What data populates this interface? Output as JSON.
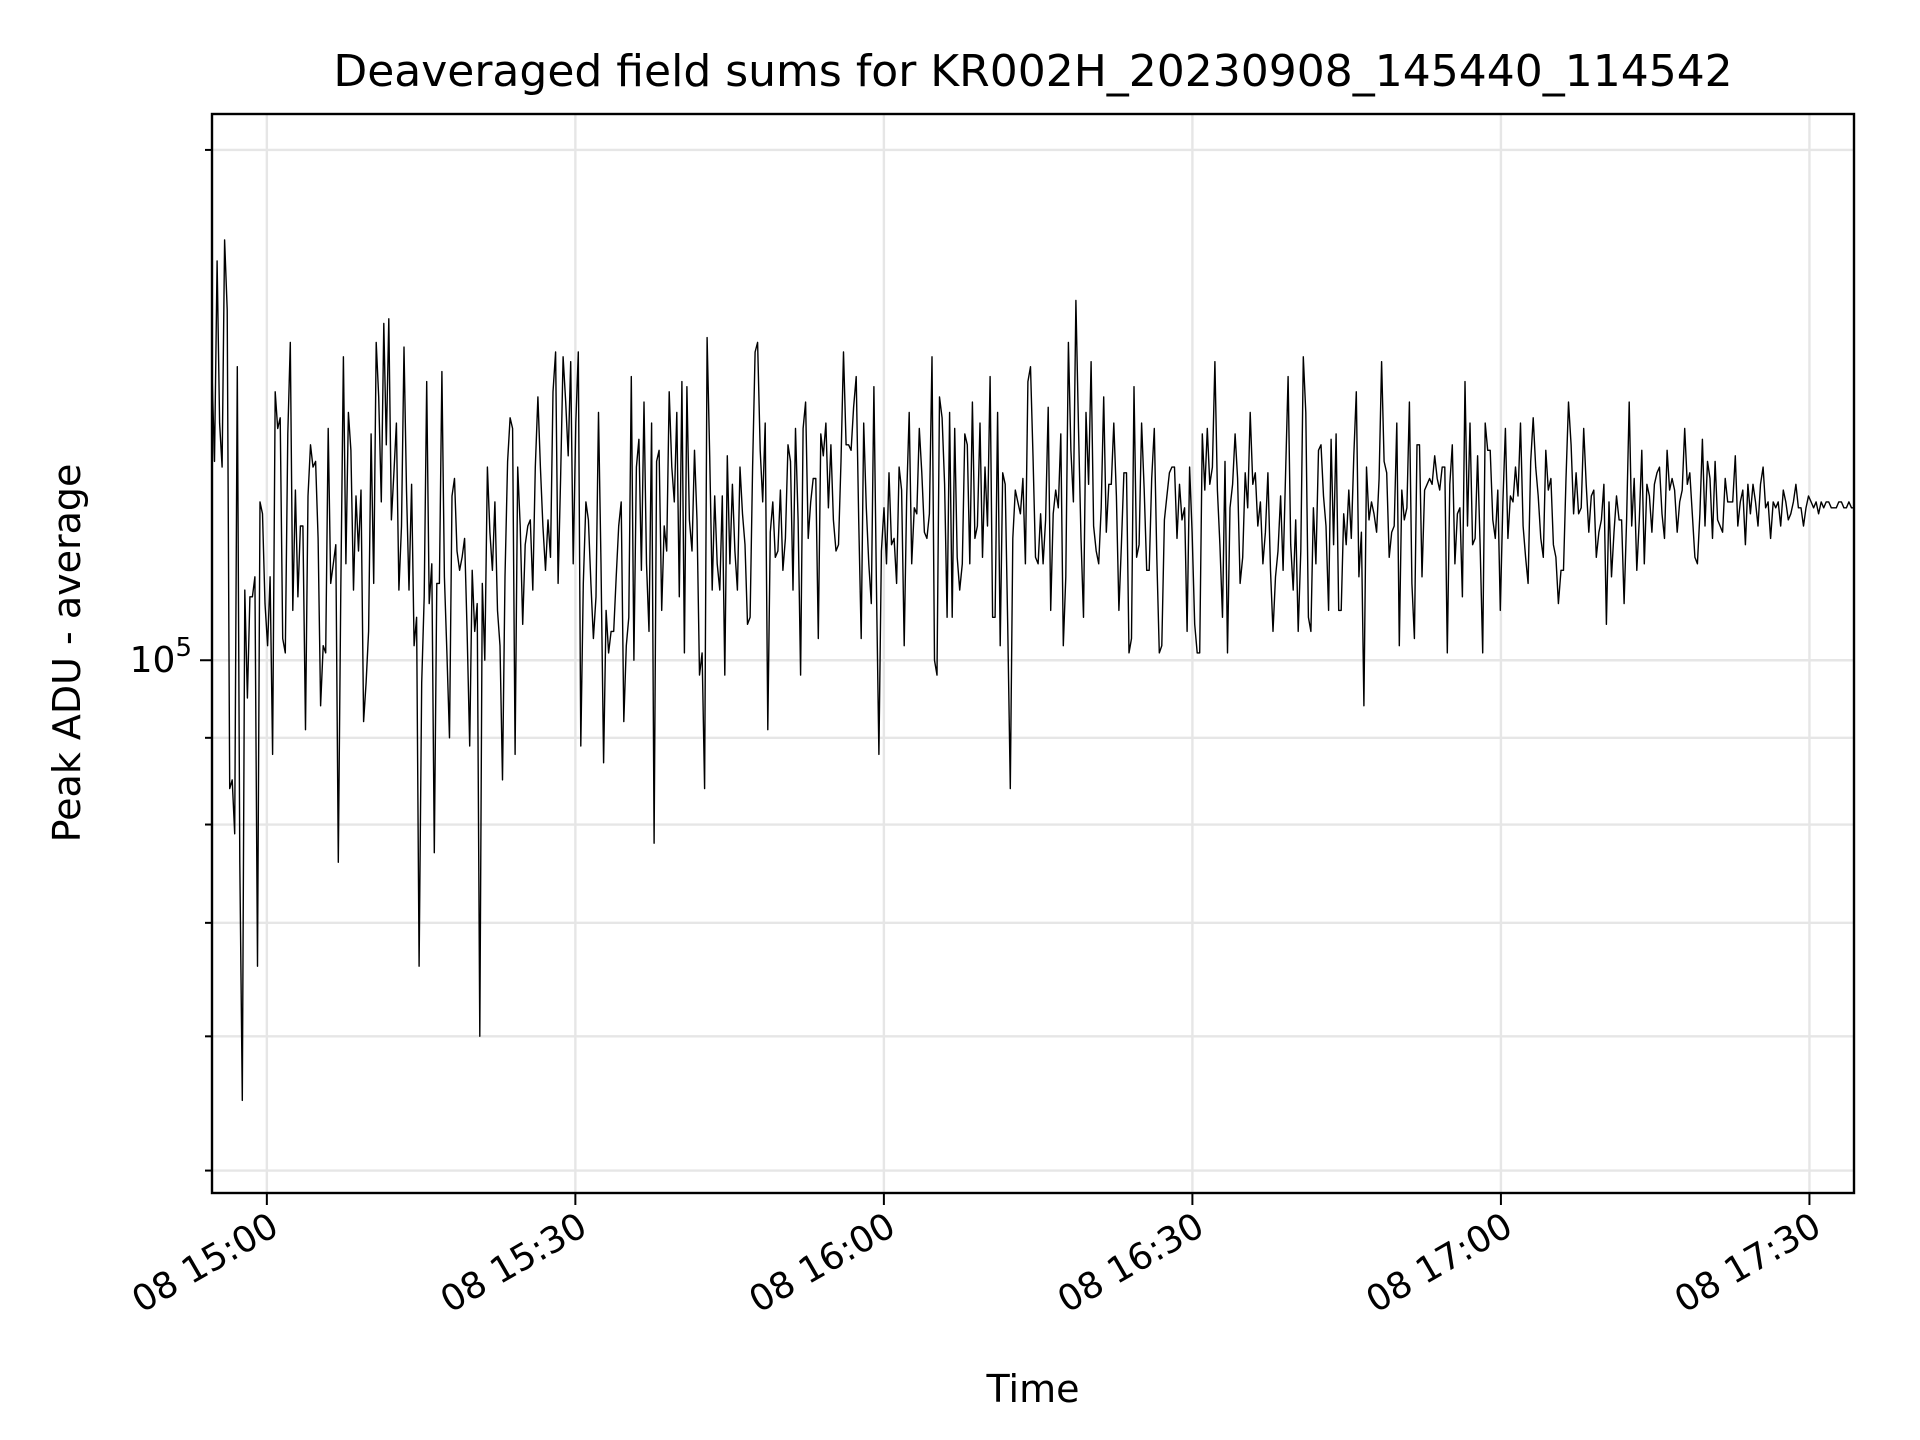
{
  "chart_data": {
    "type": "line",
    "title": "Deaveraged field sums for KR002H_20230908_145440_114542",
    "xlabel": "Time",
    "ylabel": "Peak ADU - average",
    "x_range": [
      "2023-09-08 14:54:40",
      "2023-09-08 17:34:20"
    ],
    "x_ticks": [
      {
        "t": "2023-09-08 15:00",
        "label": "08 15:00"
      },
      {
        "t": "2023-09-08 15:30",
        "label": "08 15:30"
      },
      {
        "t": "2023-09-08 16:00",
        "label": "08 16:00"
      },
      {
        "t": "2023-09-08 16:30",
        "label": "08 16:30"
      },
      {
        "t": "2023-09-08 17:00",
        "label": "08 17:00"
      },
      {
        "t": "2023-09-08 17:30",
        "label": "08 17:30"
      }
    ],
    "y_scale": "log",
    "ylim": [
      48500,
      210000
    ],
    "y_major_ticks": [
      {
        "value": 100000,
        "label_base": "10",
        "label_exp": "5"
      }
    ],
    "y_minor_ticks": [
      50000,
      60000,
      70000,
      80000,
      90000,
      200000
    ],
    "grid": true,
    "line_color": "#000000",
    "series": [
      {
        "sampling_interval_s": 5,
        "sample_count": 1916,
        "median_approx": 120000,
        "min_approx": 49000,
        "max_approx": 205000,
        "values": [
          148000,
          131000,
          172000,
          138000,
          130000,
          177000,
          161000,
          84000,
          85000,
          79000,
          149000,
          76000,
          55000,
          110000,
          95000,
          109000,
          109000,
          112000,
          66000,
          124000,
          122000,
          108000,
          102000,
          112000,
          88000,
          144000,
          137000,
          139000,
          103000,
          101000,
          136000,
          154000,
          107000,
          126000,
          109000,
          120000,
          120000,
          91000,
          125000,
          134000,
          130000,
          131000,
          118000,
          94000,
          102000,
          101000,
          137000,
          111000,
          114000,
          117000,
          76000,
          110000,
          151000,
          114000,
          140000,
          133000,
          110000,
          125000,
          116000,
          126000,
          92000,
          97000,
          104000,
          136000,
          111000,
          154000,
          143000,
          124000,
          158000,
          134000,
          159000,
          121000,
          129000,
          138000,
          110000,
          120000,
          153000,
          126000,
          110000,
          127000,
          102000,
          106000,
          66000,
          97000,
          109000,
          146000,
          108000,
          114000,
          77000,
          111000,
          111000,
          148000,
          112000,
          101000,
          90000,
          125000,
          128000,
          116000,
          113000,
          115000,
          118000,
          104000,
          89000,
          113000,
          104000,
          108000,
          60000,
          111000,
          100000,
          130000,
          119000,
          113000,
          124000,
          107000,
          102000,
          85000,
          112000,
          131000,
          139000,
          137000,
          88000,
          130000,
          120000,
          105000,
          117000,
          120000,
          121000,
          110000,
          130000,
          143000,
          130000,
          120000,
          113000,
          121000,
          115000,
          144000,
          152000,
          111000,
          128000,
          151000,
          142000,
          132000,
          150000,
          114000,
          138000,
          152000,
          89000,
          111000,
          124000,
          121000,
          111000,
          103000,
          109000,
          140000,
          114000,
          87000,
          107000,
          101000,
          104000,
          104000,
          112000,
          120000,
          124000,
          92000,
          102000,
          106000,
          147000,
          100000,
          130000,
          135000,
          113000,
          142000,
          114000,
          104000,
          138000,
          78000,
          131000,
          133000,
          107000,
          120000,
          116000,
          144000,
          130000,
          124000,
          140000,
          109000,
          146000,
          101000,
          145000,
          121000,
          116000,
          133000,
          121000,
          98000,
          101000,
          84000,
          155000,
          132000,
          110000,
          125000,
          114000,
          110000,
          125000,
          98000,
          132000,
          114000,
          127000,
          116000,
          110000,
          130000,
          122000,
          117000,
          105000,
          106000,
          130000,
          152000,
          154000,
          133000,
          124000,
          138000,
          91000,
          119000,
          124000,
          115000,
          116000,
          126000,
          113000,
          118000,
          134000,
          131000,
          110000,
          137000,
          121000,
          98000,
          137000,
          142000,
          118000,
          124000,
          128000,
          128000,
          103000,
          136000,
          132000,
          138000,
          123000,
          134000,
          121000,
          116000,
          117000,
          131000,
          152000,
          134000,
          134000,
          133000,
          141000,
          147000,
          121000,
          103000,
          138000,
          123000,
          114000,
          108000,
          145000,
          111000,
          88000,
          116000,
          123000,
          114000,
          129000,
          117000,
          118000,
          111000,
          130000,
          126000,
          102000,
          125000,
          140000,
          114000,
          123000,
          122000,
          137000,
          129000,
          119000,
          118000,
          122000,
          151000,
          100000,
          98000,
          143000,
          139000,
          127000,
          106000,
          140000,
          106000,
          137000,
          115000,
          110000,
          114000,
          136000,
          134000,
          114000,
          142000,
          118000,
          120000,
          138000,
          115000,
          130000,
          120000,
          147000,
          106000,
          106000,
          140000,
          102000,
          129000,
          127000,
          105000,
          84000,
          118000,
          126000,
          124000,
          122000,
          128000,
          114000,
          146000,
          149000,
          132000,
          115000,
          114000,
          122000,
          114000,
          121000,
          141000,
          107000,
          122000,
          126000,
          123000,
          136000,
          102000,
          112000,
          154000,
          133000,
          124000,
          163000,
          137000,
          118000,
          106000,
          140000,
          127000,
          150000,
          120000,
          116000,
          114000,
          123000,
          143000,
          119000,
          127000,
          127000,
          138000,
          125000,
          107000,
          117000,
          129000,
          129000,
          101000,
          103000,
          145000,
          115000,
          117000,
          138000,
          126000,
          113000,
          113000,
          128000,
          137000,
          115000,
          101000,
          102000,
          121000,
          125000,
          129000,
          130000,
          130000,
          118000,
          127000,
          121000,
          123000,
          104000,
          130000,
          119000,
          105000,
          101000,
          101000,
          136000,
          126000,
          137000,
          127000,
          130000,
          150000,
          126000,
          117000,
          106000,
          131000,
          101000,
          123000,
          127000,
          136000,
          128000,
          111000,
          115000,
          129000,
          123000,
          140000,
          127000,
          129000,
          120000,
          124000,
          114000,
          119000,
          129000,
          113000,
          104000,
          112000,
          116000,
          125000,
          113000,
          129000,
          147000,
          117000,
          110000,
          121000,
          104000,
          116000,
          151000,
          140000,
          106000,
          104000,
          123000,
          114000,
          133000,
          134000,
          125000,
          120000,
          107000,
          135000,
          117000,
          136000,
          107000,
          107000,
          122000,
          117000,
          126000,
          118000,
          132000,
          144000,
          112000,
          119000,
          94000,
          130000,
          121000,
          124000,
          122000,
          119000,
          128000,
          150000,
          131000,
          129000,
          115000,
          119000,
          120000,
          138000,
          102000,
          126000,
          121000,
          123000,
          142000,
          111000,
          103000,
          134000,
          134000,
          112000,
          126000,
          127000,
          128000,
          127000,
          132000,
          128000,
          126000,
          130000,
          130000,
          101000,
          127000,
          134000,
          114000,
          122000,
          123000,
          109000,
          146000,
          120000,
          138000,
          117000,
          118000,
          132000,
          117000,
          101000,
          138000,
          133000,
          133000,
          121000,
          118000,
          126000,
          107000,
          124000,
          137000,
          118000,
          125000,
          124000,
          130000,
          125000,
          138000,
          120000,
          115000,
          111000,
          131000,
          139000,
          130000,
          125000,
          118000,
          115000,
          133000,
          126000,
          128000,
          117000,
          115000,
          108000,
          113000,
          113000,
          128000,
          142000,
          134000,
          122000,
          129000,
          122000,
          123000,
          137000,
          127000,
          119000,
          125000,
          126000,
          115000,
          119000,
          121000,
          127000,
          105000,
          124000,
          112000,
          119000,
          125000,
          121000,
          121000,
          108000,
          121000,
          142000,
          120000,
          128000,
          113000,
          121000,
          133000,
          114000,
          127000,
          125000,
          119000,
          127000,
          129000,
          130000,
          122000,
          118000,
          133000,
          126000,
          128000,
          126000,
          119000,
          124000,
          126000,
          137000,
          127000,
          129000,
          122000,
          115000,
          114000,
          122000,
          135000,
          120000,
          131000,
          128000,
          118000,
          131000,
          121000,
          120000,
          119000,
          128000,
          124000,
          124000,
          124000,
          132000,
          120000,
          124000,
          126000,
          117000,
          127000,
          122000,
          127000,
          124000,
          120000,
          127000,
          130000,
          123000,
          124000,
          118000,
          124000,
          123000,
          124000,
          120000,
          126000,
          124000,
          121000,
          122000,
          124000,
          127000,
          123000,
          123000,
          120000,
          123000,
          125000,
          124000,
          123000,
          124000,
          122000,
          124000,
          123000,
          124000,
          124000,
          123000,
          123000,
          123000,
          124000,
          124000,
          123000,
          123000,
          124000,
          123000,
          123000
        ]
      }
    ]
  }
}
